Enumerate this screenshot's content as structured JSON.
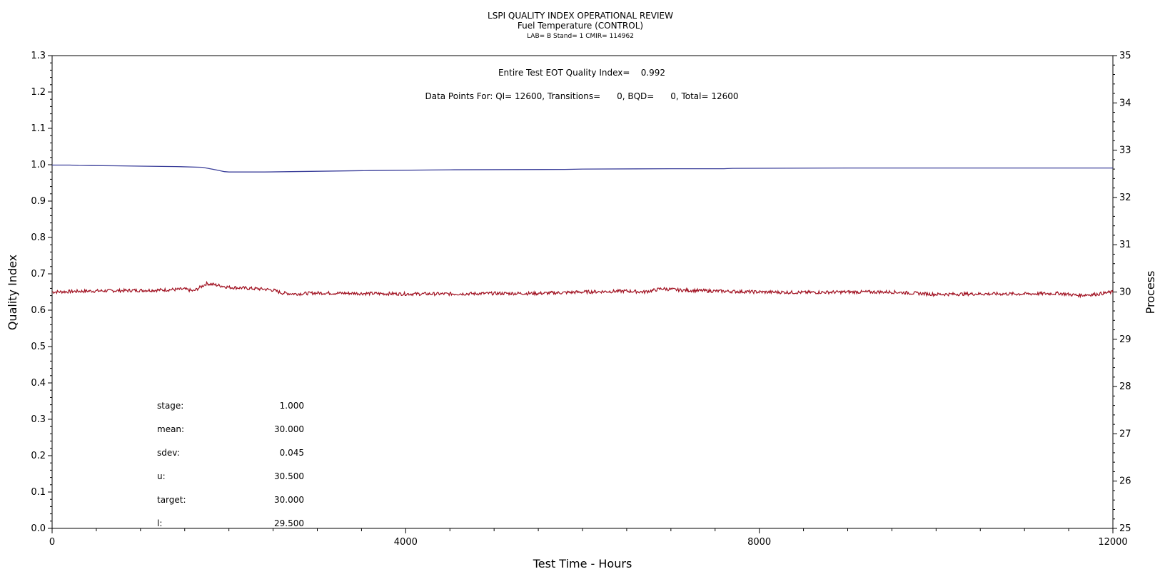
{
  "chart_data": {
    "type": "line",
    "title": "LSPI QUALITY INDEX OPERATIONAL REVIEW",
    "subtitle": "Fuel Temperature (CONTROL)",
    "subtitle2": "LAB= B Stand= 1 CMIR= 114962",
    "annotation_qi": "Entire Test EOT Quality Index=    0.992",
    "annotation_points": "Data Points For: QI= 12600, Transitions=      0, BQD=      0, Total= 12600",
    "xlabel": "Test Time - Hours",
    "ylabel_left": "Quality Index",
    "ylabel_right": "Process",
    "xlim": [
      0,
      12000
    ],
    "ylim_left": [
      0.0,
      1.3
    ],
    "ylim_right": [
      25,
      35
    ],
    "x_ticks": [
      0,
      4000,
      8000,
      12000
    ],
    "x_tick_labels": [
      "0",
      "4000",
      "8000",
      "12000"
    ],
    "y_left_ticks": [
      0.0,
      0.1,
      0.2,
      0.3,
      0.4,
      0.5,
      0.6,
      0.7,
      0.8,
      0.9,
      1.0,
      1.1,
      1.2,
      1.3
    ],
    "y_left_tick_labels": [
      "0.0",
      "0.1",
      "0.2",
      "0.3",
      "0.4",
      "0.5",
      "0.6",
      "0.7",
      "0.8",
      "0.9",
      "1.0",
      "1.1",
      "1.2",
      "1.3"
    ],
    "y_right_ticks": [
      25,
      26,
      27,
      28,
      29,
      30,
      31,
      32,
      33,
      34,
      35
    ],
    "y_right_tick_labels": [
      "25",
      "26",
      "27",
      "28",
      "29",
      "30",
      "31",
      "32",
      "33",
      "34",
      "35"
    ],
    "series": [
      {
        "axis": "left",
        "color": "#3b3f9a",
        "x": [
          0,
          200,
          300,
          700,
          1000,
          1400,
          1700,
          1850,
          1950,
          2000,
          2400,
          2700,
          3000,
          3600,
          4500,
          5800,
          6000,
          7000,
          7600,
          7700,
          9000,
          12000
        ],
        "values": [
          0.999,
          0.999,
          0.998,
          0.997,
          0.996,
          0.995,
          0.993,
          0.986,
          0.981,
          0.98,
          0.98,
          0.981,
          0.982,
          0.984,
          0.986,
          0.987,
          0.988,
          0.989,
          0.989,
          0.99,
          0.991,
          0.991
        ]
      },
      {
        "axis": "right",
        "color": "#a01020",
        "x": [
          0,
          400,
          800,
          1200,
          1500,
          1600,
          1750,
          1850,
          2000,
          2200,
          2400,
          2500,
          2600,
          2750,
          3000,
          3500,
          4000,
          4500,
          5000,
          5500,
          6000,
          6500,
          6700,
          6900,
          7100,
          7500,
          8000,
          8500,
          9000,
          9500,
          10000,
          10400,
          11000,
          11400,
          11600,
          11800,
          12000
        ],
        "values": [
          30.0,
          30.02,
          30.03,
          30.04,
          30.06,
          30.02,
          30.18,
          30.15,
          30.1,
          30.08,
          30.06,
          30.04,
          29.98,
          29.96,
          29.98,
          29.97,
          29.96,
          29.96,
          29.97,
          29.97,
          30.0,
          30.02,
          30.0,
          30.07,
          30.04,
          30.02,
          30.0,
          29.99,
          30.0,
          30.0,
          29.95,
          29.96,
          29.96,
          29.97,
          29.93,
          29.95,
          30.0
        ]
      }
    ]
  },
  "stats": [
    {
      "label": "stage:",
      "value": "1.000"
    },
    {
      "label": "mean:",
      "value": "30.000"
    },
    {
      "label": "sdev:",
      "value": "0.045"
    },
    {
      "label": "u:",
      "value": "30.500"
    },
    {
      "label": "target:",
      "value": "30.000"
    },
    {
      "label": "l:",
      "value": "29.500"
    }
  ]
}
